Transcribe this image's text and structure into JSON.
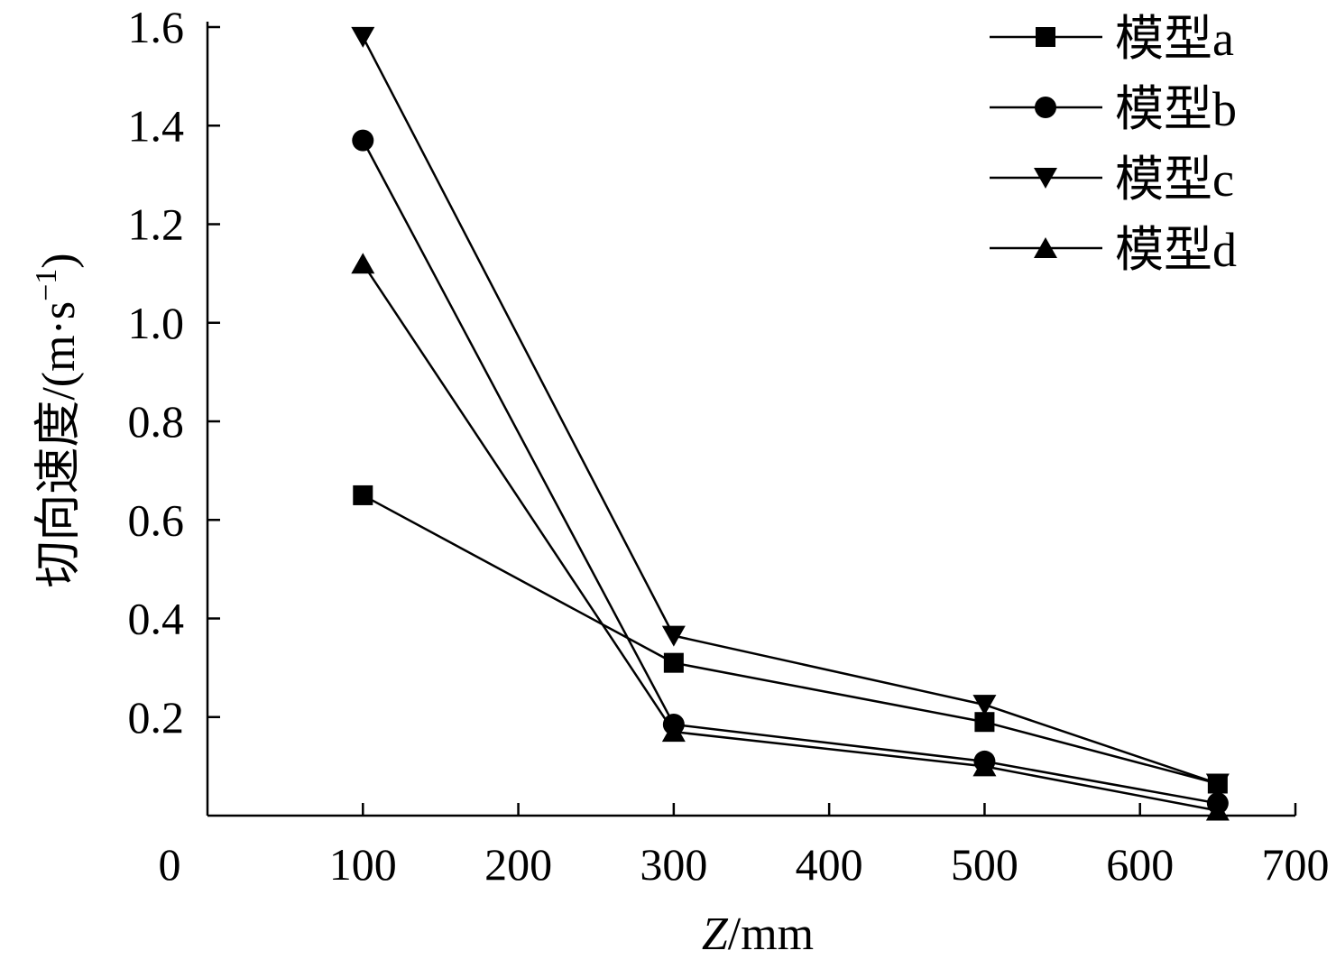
{
  "chart_data": {
    "type": "line",
    "title": "",
    "xlabel_italic": "Z",
    "xlabel_rest": "/mm",
    "ylabel_main": "切向速度/(m·s",
    "ylabel_sup": "−1",
    "ylabel_close": ")",
    "xlim": [
      0,
      700
    ],
    "ylim": [
      0,
      1.6
    ],
    "x_ticks": [
      0,
      100,
      200,
      300,
      400,
      500,
      600,
      700
    ],
    "x_tick_labels": [
      "0",
      "100",
      "200",
      "300",
      "400",
      "500",
      "600",
      "700"
    ],
    "y_ticks": [
      0.2,
      0.4,
      0.6,
      0.8,
      1.0,
      1.2,
      1.4,
      1.6
    ],
    "y_tick_labels": [
      "0.2",
      "0.4",
      "0.6",
      "0.8",
      "1.0",
      "1.2",
      "1.4",
      "1.6"
    ],
    "grid": false,
    "legend_position": "top-right",
    "series": [
      {
        "name": "模型a",
        "marker": "square",
        "x": [
          100,
          300,
          500,
          650
        ],
        "y": [
          0.65,
          0.31,
          0.19,
          0.065
        ]
      },
      {
        "name": "模型b",
        "marker": "circle",
        "x": [
          100,
          300,
          500,
          650
        ],
        "y": [
          1.37,
          0.185,
          0.11,
          0.025
        ]
      },
      {
        "name": "模型c",
        "marker": "triangle-down",
        "x": [
          100,
          300,
          500,
          650
        ],
        "y": [
          1.58,
          0.365,
          0.225,
          0.065
        ]
      },
      {
        "name": "模型d",
        "marker": "triangle-up",
        "x": [
          100,
          300,
          500,
          650
        ],
        "y": [
          1.12,
          0.17,
          0.1,
          0.01
        ]
      }
    ],
    "colors": {
      "line": "#000000",
      "marker": "#000000"
    }
  }
}
